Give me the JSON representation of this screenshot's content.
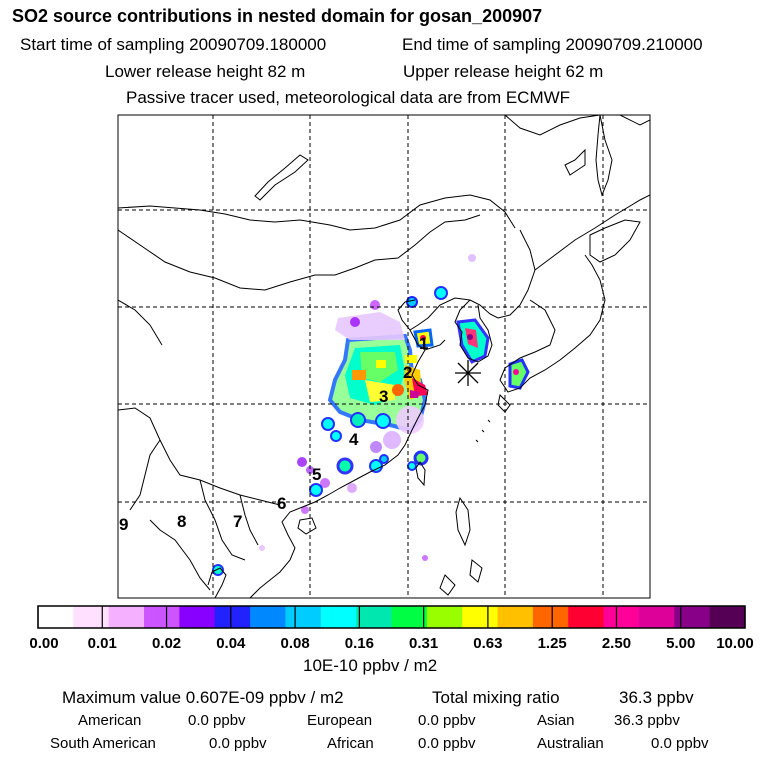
{
  "header": {
    "title": "SO2 source contributions in nested domain for gosan_200907",
    "start_time": "Start time of sampling 20090709.180000",
    "end_time": "End time of sampling 20090709.210000",
    "lower_height": "Lower release height   82 m",
    "upper_height": "Upper release height   62 m",
    "note": "Passive tracer used, meteorological data are from ECMWF"
  },
  "map": {
    "receptor_marker": "asterisk",
    "region_labels": [
      "1",
      "2",
      "3",
      "4",
      "5",
      "6",
      "7",
      "8",
      "9"
    ]
  },
  "colorbar": {
    "ticks": [
      "0.00",
      "0.01",
      "0.02",
      "0.04",
      "0.08",
      "0.16",
      "0.31",
      "0.63",
      "1.25",
      "2.50",
      "5.00",
      "10.00"
    ],
    "unit": "10E-10 ppbv / m2",
    "colors": [
      "#ffffff",
      "#ffe0ff",
      "#f5b0ff",
      "#cc55ff",
      "#8800ff",
      "#2222ff",
      "#0088ff",
      "#00ccff",
      "#00ffff",
      "#00e8b0",
      "#00ff44",
      "#99ff00",
      "#ffff00",
      "#ffc000",
      "#ff6600",
      "#ff0033",
      "#ff0099",
      "#dd0099",
      "#880088",
      "#550055"
    ]
  },
  "summary": {
    "max_label": "Maximum value  0.607E-09 ppbv / m2",
    "total_label": "Total mixing ratio",
    "total_value": "36.3 ppbv",
    "rows": [
      [
        {
          "label": "American",
          "value": "0.0 ppbv"
        },
        {
          "label": "European",
          "value": "0.0 ppbv"
        },
        {
          "label": "Asian",
          "value": "36.3 ppbv"
        }
      ],
      [
        {
          "label": "South American",
          "value": "0.0 ppbv"
        },
        {
          "label": "African",
          "value": "0.0 ppbv"
        },
        {
          "label": "Australian",
          "value": "0.0 ppbv"
        }
      ]
    ]
  }
}
